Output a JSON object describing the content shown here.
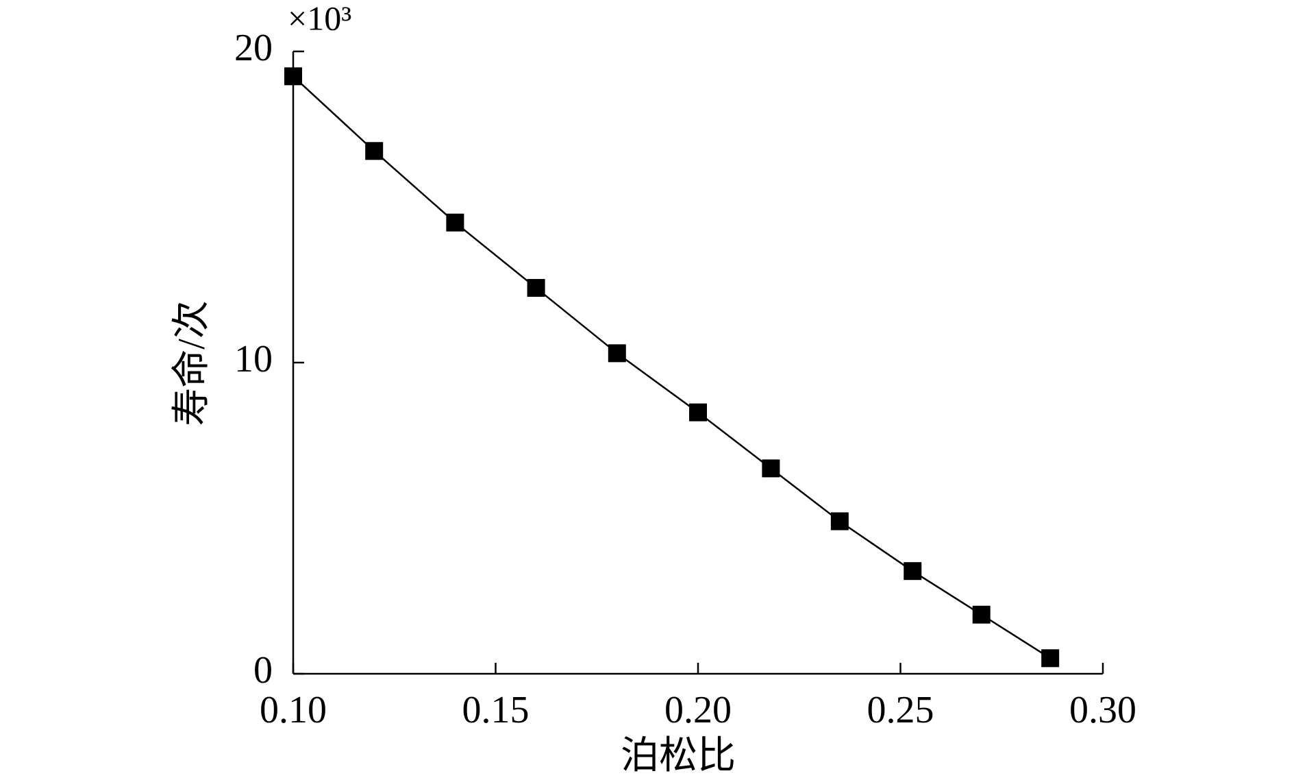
{
  "chart_data": {
    "type": "line",
    "x_label": "泊松比",
    "y_label": "寿命/次",
    "y_multiplier": "×10³",
    "x": [
      0.1,
      0.12,
      0.14,
      0.16,
      0.18,
      0.2,
      0.218,
      0.235,
      0.253,
      0.27,
      0.287
    ],
    "series": [
      {
        "name": "寿命",
        "color": "#000000",
        "values": [
          19.2,
          16.8,
          14.5,
          12.4,
          10.3,
          8.4,
          6.6,
          4.9,
          3.3,
          1.9,
          0.5
        ]
      }
    ],
    "xlim": [
      0.1,
      0.3
    ],
    "ylim": [
      0,
      20
    ],
    "xticks": [
      {
        "value": 0.1,
        "label": "0.10"
      },
      {
        "value": 0.15,
        "label": "0.15"
      },
      {
        "value": 0.2,
        "label": "0.20"
      },
      {
        "value": 0.25,
        "label": "0.25"
      },
      {
        "value": 0.3,
        "label": "0.30"
      }
    ],
    "yticks": [
      0,
      10,
      20
    ],
    "grid": false,
    "marker": "square"
  }
}
